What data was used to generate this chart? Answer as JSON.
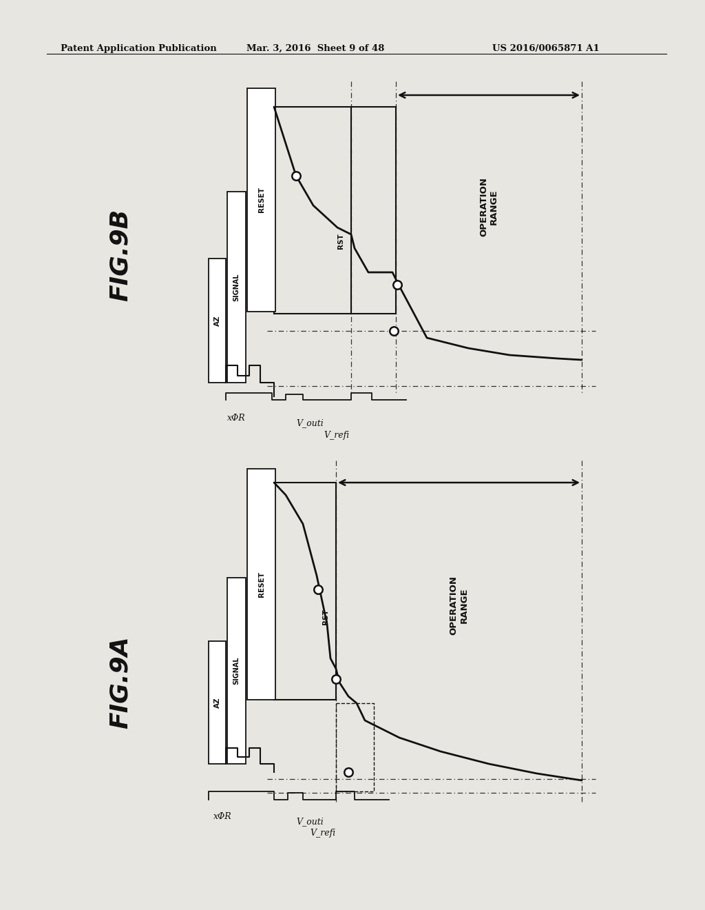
{
  "background_color": "#e8e6e0",
  "header_text": "Patent Application Publication",
  "header_date": "Mar. 3, 2016  Sheet 9 of 48",
  "header_patent": "US 2016/0065871 A1",
  "fig9b_label": "FIG.9B",
  "fig9a_label": "FIG.9A",
  "label_az": "AZ",
  "label_signal": "SIGNAL",
  "label_reset": "RESET",
  "label_xphi_r": "xΦR",
  "label_v_outi": "V_outi",
  "label_v_refi": "V_refi",
  "label_rst": "RST",
  "label_operation_range": "OPERATION\nRANGE",
  "black": "#111111"
}
